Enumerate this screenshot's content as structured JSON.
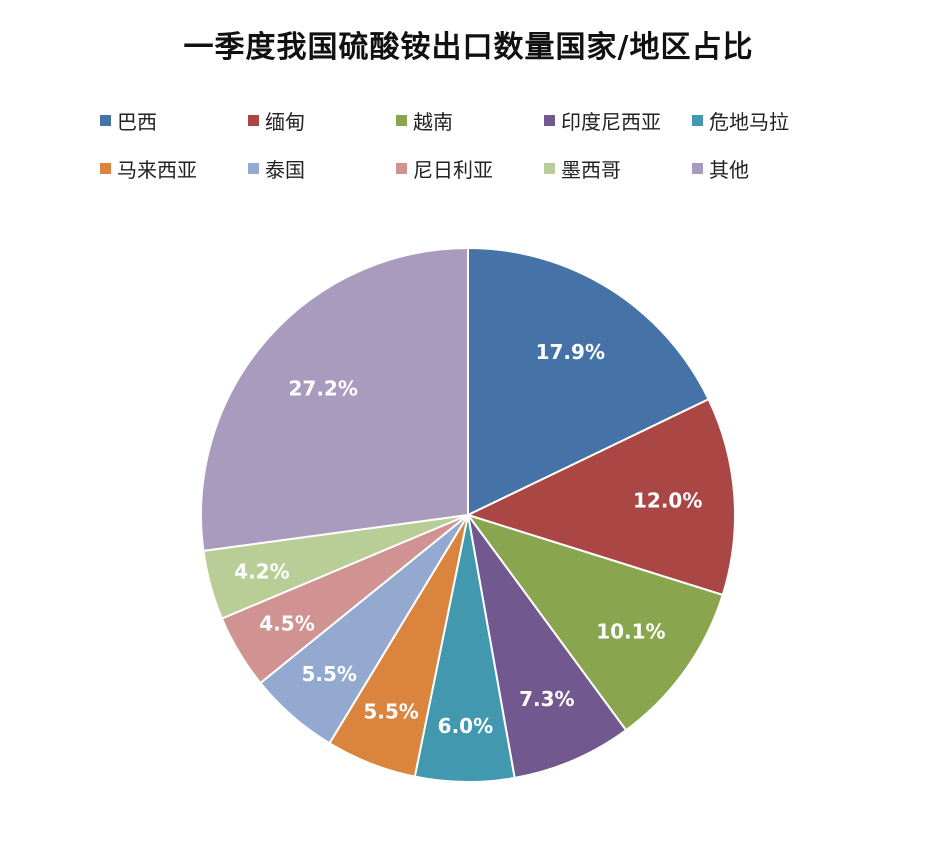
{
  "chart_data": {
    "type": "pie",
    "title": "一季度我国硫酸铵出口数量国家/地区占比",
    "legend_position": "top",
    "categories": [
      "巴西",
      "缅甸",
      "越南",
      "印度尼西亚",
      "危地马拉",
      "马来西亚",
      "泰国",
      "尼日利亚",
      "墨西哥",
      "其他"
    ],
    "values": [
      17.9,
      12.0,
      10.1,
      7.3,
      6.0,
      5.5,
      5.5,
      4.5,
      4.2,
      27.2
    ],
    "value_labels": [
      "17.9%",
      "12.0%",
      "10.1%",
      "7.3%",
      "6.0%",
      "5.5%",
      "5.5%",
      "4.5%",
      "4.2%",
      "27.2%"
    ],
    "unit": "%",
    "colors": [
      "#4572A7",
      "#AA4643",
      "#89A54E",
      "#71588F",
      "#4198AF",
      "#DB843D",
      "#93A9CF",
      "#D19392",
      "#B9CD96",
      "#A99BBD"
    ]
  }
}
